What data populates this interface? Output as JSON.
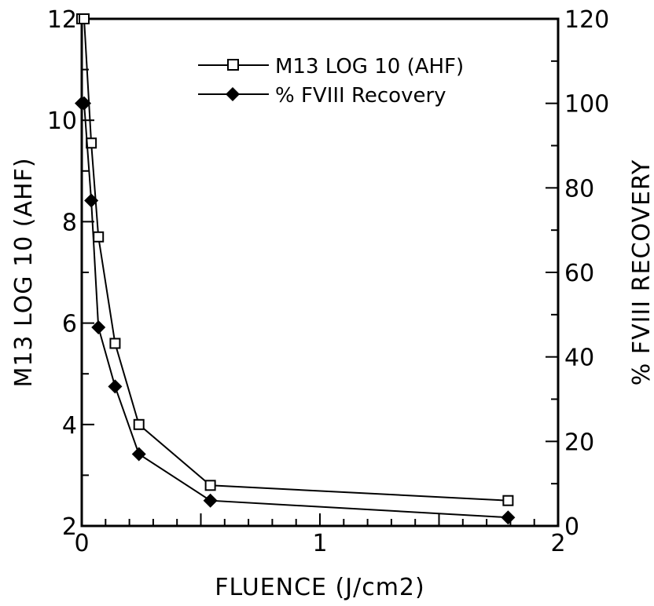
{
  "chart_data": {
    "type": "line",
    "title": "",
    "xlabel": "FLUENCE (J/cm2)",
    "ylabel": "M13 LOG 10 (AHF)",
    "y2label": "% FVIII RECOVERY",
    "xlim": [
      0,
      2
    ],
    "ylim": [
      2,
      12
    ],
    "y2lim": [
      0,
      120
    ],
    "xticks": [
      0,
      1,
      2
    ],
    "xtick_labels": [
      "0",
      "1",
      "2"
    ],
    "yticks": [
      2,
      4,
      6,
      8,
      10,
      12
    ],
    "ytick_labels": [
      "2",
      "4",
      "6",
      "8",
      "10",
      "12"
    ],
    "y2ticks": [
      0,
      20,
      40,
      60,
      80,
      100,
      120
    ],
    "y2tick_labels": [
      "0",
      "20",
      "40",
      "60",
      "80",
      "100",
      "120"
    ],
    "grid": false,
    "legend_position": "top-right",
    "series": [
      {
        "name": "M13 LOG 10 (AHF)",
        "axis": "left",
        "marker": "open-square",
        "x": [
          0,
          0.01,
          0.04,
          0.07,
          0.14,
          0.24,
          0.54,
          1.79
        ],
        "y": [
          12.0,
          12.0,
          9.55,
          7.7,
          5.6,
          4.0,
          2.8,
          2.5
        ]
      },
      {
        "name": "% FVIII Recovery",
        "axis": "right",
        "marker": "filled-diamond",
        "x": [
          0,
          0.01,
          0.04,
          0.07,
          0.14,
          0.24,
          0.54,
          1.79
        ],
        "y": [
          100,
          100,
          77,
          47,
          33,
          17,
          6,
          2
        ]
      }
    ]
  }
}
